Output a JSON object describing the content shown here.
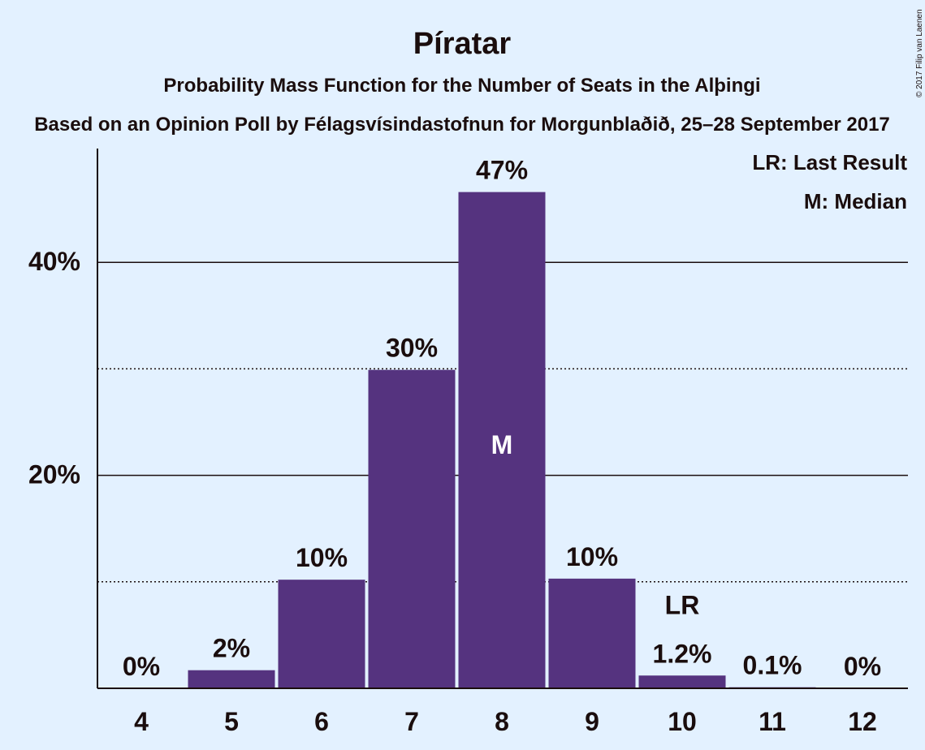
{
  "chart_data": {
    "type": "bar",
    "title": "Píratar",
    "subtitle": "Probability Mass Function for the Number of Seats in the Alþingi",
    "source": "Based on an Opinion Poll by Félagsvísindastofnun for Morgunblaðið, 25–28 September 2017",
    "copyright": "© 2017 Filip van Laenen",
    "categories": [
      "4",
      "5",
      "6",
      "7",
      "8",
      "9",
      "10",
      "11",
      "12"
    ],
    "values": [
      0,
      1.7,
      10.2,
      29.9,
      46.6,
      10.3,
      1.2,
      0.1,
      0
    ],
    "data_labels": [
      "0%",
      "2%",
      "10%",
      "30%",
      "47%",
      "10%",
      "1.2%",
      "0.1%",
      "0%"
    ],
    "ylim": [
      0,
      50
    ],
    "y_ticks": [
      {
        "value": 20,
        "label": "20%"
      },
      {
        "value": 40,
        "label": "40%"
      }
    ],
    "dotted_gridlines": [
      10,
      30
    ],
    "median_category": "8",
    "median_marker": "M",
    "last_result_category": "10",
    "last_result_marker": "LR",
    "legend": {
      "placement": "top-right",
      "items": [
        "LR: Last Result",
        "M: Median"
      ]
    },
    "colors": {
      "bar": "#55337f",
      "background": "#e3f1ff",
      "text": "#1a0d0d"
    }
  }
}
